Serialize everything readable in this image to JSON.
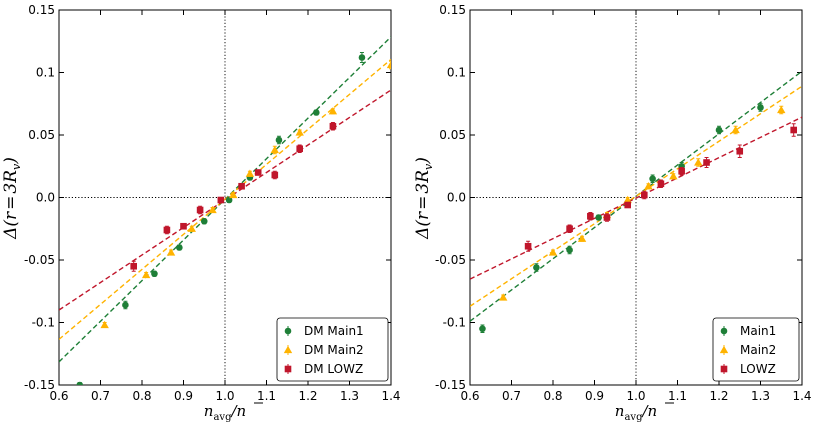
{
  "colors": {
    "green": "#1e7f37",
    "orange": "#ffb300",
    "red": "#c0162b"
  },
  "chart_data": [
    {
      "type": "scatter",
      "panel": "left",
      "xlabel": "n_avg / n̄",
      "ylabel": "Δ(r = 3R_v)",
      "xlim": [
        0.6,
        1.4
      ],
      "ylim": [
        -0.15,
        0.15
      ],
      "xticks": [
        "0.6",
        "0.7",
        "0.8",
        "0.9",
        "1.0",
        "1.1",
        "1.2",
        "1.3",
        "1.4"
      ],
      "yticks": [
        "-0.15",
        "-0.1",
        "-0.05",
        "0.0",
        "0.05",
        "0.1",
        "0.15"
      ],
      "reference_lines": {
        "x": 1.0,
        "y": 0.0
      },
      "legend_position": "bottom-right",
      "series": [
        {
          "name": "DM Main1",
          "color_key": "green",
          "marker": "circle",
          "fit": {
            "slope": 0.325,
            "intercept": -0.0015
          },
          "points": [
            {
              "x": 0.65,
              "y": -0.15,
              "err": 0.002
            },
            {
              "x": 0.76,
              "y": -0.086,
              "err": 0.003
            },
            {
              "x": 0.83,
              "y": -0.061,
              "err": 0.002
            },
            {
              "x": 0.89,
              "y": -0.04,
              "err": 0.002
            },
            {
              "x": 0.95,
              "y": -0.019,
              "err": 0.002
            },
            {
              "x": 1.01,
              "y": -0.002,
              "err": 0.002
            },
            {
              "x": 1.06,
              "y": 0.016,
              "err": 0.002
            },
            {
              "x": 1.13,
              "y": 0.046,
              "err": 0.003
            },
            {
              "x": 1.22,
              "y": 0.068,
              "err": 0.002
            },
            {
              "x": 1.33,
              "y": 0.112,
              "err": 0.004
            }
          ]
        },
        {
          "name": "DM Main2",
          "color_key": "orange",
          "marker": "triangle",
          "fit": {
            "slope": 0.28,
            "intercept": -0.0015
          },
          "points": [
            {
              "x": 0.71,
              "y": -0.102,
              "err": 0.002
            },
            {
              "x": 0.81,
              "y": -0.062,
              "err": 0.002
            },
            {
              "x": 0.87,
              "y": -0.044,
              "err": 0.002
            },
            {
              "x": 0.92,
              "y": -0.025,
              "err": 0.002
            },
            {
              "x": 0.97,
              "y": -0.01,
              "err": 0.002
            },
            {
              "x": 1.02,
              "y": 0.002,
              "err": 0.002
            },
            {
              "x": 1.06,
              "y": 0.019,
              "err": 0.002
            },
            {
              "x": 1.12,
              "y": 0.038,
              "err": 0.003
            },
            {
              "x": 1.18,
              "y": 0.052,
              "err": 0.002
            },
            {
              "x": 1.26,
              "y": 0.069,
              "err": 0.002
            },
            {
              "x": 1.4,
              "y": 0.106,
              "err": 0.003
            }
          ]
        },
        {
          "name": "DM LOWZ",
          "color_key": "red",
          "marker": "square",
          "fit": {
            "slope": 0.22,
            "intercept": -0.002
          },
          "points": [
            {
              "x": 0.78,
              "y": -0.055,
              "err": 0.004
            },
            {
              "x": 0.86,
              "y": -0.026,
              "err": 0.003
            },
            {
              "x": 0.9,
              "y": -0.023,
              "err": 0.002
            },
            {
              "x": 0.94,
              "y": -0.01,
              "err": 0.003
            },
            {
              "x": 0.99,
              "y": -0.002,
              "err": 0.002
            },
            {
              "x": 1.04,
              "y": 0.009,
              "err": 0.002
            },
            {
              "x": 1.08,
              "y": 0.02,
              "err": 0.002
            },
            {
              "x": 1.12,
              "y": 0.018,
              "err": 0.003
            },
            {
              "x": 1.18,
              "y": 0.039,
              "err": 0.003
            },
            {
              "x": 1.26,
              "y": 0.057,
              "err": 0.003
            }
          ]
        }
      ]
    },
    {
      "type": "scatter",
      "panel": "right",
      "xlabel": "n_avg / n̄",
      "ylabel": "Δ(r = 3R_v)",
      "xlim": [
        0.6,
        1.4
      ],
      "ylim": [
        -0.15,
        0.15
      ],
      "xticks": [
        "0.6",
        "0.7",
        "0.8",
        "0.9",
        "1.0",
        "1.1",
        "1.2",
        "1.3",
        "1.4"
      ],
      "yticks": [
        "-0.15",
        "-0.1",
        "-0.05",
        "0.0",
        "0.05",
        "0.1",
        "0.15"
      ],
      "reference_lines": {
        "x": 1.0,
        "y": 0.0
      },
      "legend_position": "bottom-right",
      "series": [
        {
          "name": "Main1",
          "color_key": "green",
          "marker": "circle",
          "fit": {
            "slope": 0.25,
            "intercept": 0.001
          },
          "points": [
            {
              "x": 0.63,
              "y": -0.105,
              "err": 0.003
            },
            {
              "x": 0.76,
              "y": -0.056,
              "err": 0.003
            },
            {
              "x": 0.84,
              "y": -0.042,
              "err": 0.003
            },
            {
              "x": 0.91,
              "y": -0.016,
              "err": 0.002
            },
            {
              "x": 0.98,
              "y": -0.004,
              "err": 0.002
            },
            {
              "x": 1.04,
              "y": 0.015,
              "err": 0.003
            },
            {
              "x": 1.11,
              "y": 0.025,
              "err": 0.003
            },
            {
              "x": 1.2,
              "y": 0.054,
              "err": 0.003
            },
            {
              "x": 1.3,
              "y": 0.072,
              "err": 0.003
            }
          ]
        },
        {
          "name": "Main2",
          "color_key": "orange",
          "marker": "triangle",
          "fit": {
            "slope": 0.22,
            "intercept": 0.001
          },
          "points": [
            {
              "x": 0.68,
              "y": -0.08,
              "err": 0.002
            },
            {
              "x": 0.8,
              "y": -0.044,
              "err": 0.002
            },
            {
              "x": 0.87,
              "y": -0.033,
              "err": 0.002
            },
            {
              "x": 0.93,
              "y": -0.014,
              "err": 0.002
            },
            {
              "x": 0.98,
              "y": -0.002,
              "err": 0.002
            },
            {
              "x": 1.03,
              "y": 0.009,
              "err": 0.002
            },
            {
              "x": 1.09,
              "y": 0.017,
              "err": 0.002
            },
            {
              "x": 1.15,
              "y": 0.028,
              "err": 0.003
            },
            {
              "x": 1.24,
              "y": 0.054,
              "err": 0.003
            },
            {
              "x": 1.35,
              "y": 0.07,
              "err": 0.003
            }
          ]
        },
        {
          "name": "LOWZ",
          "color_key": "red",
          "marker": "square",
          "fit": {
            "slope": 0.162,
            "intercept": -0.0005
          },
          "points": [
            {
              "x": 0.74,
              "y": -0.039,
              "err": 0.004
            },
            {
              "x": 0.84,
              "y": -0.025,
              "err": 0.003
            },
            {
              "x": 0.89,
              "y": -0.015,
              "err": 0.003
            },
            {
              "x": 0.93,
              "y": -0.016,
              "err": 0.003
            },
            {
              "x": 0.98,
              "y": -0.006,
              "err": 0.002
            },
            {
              "x": 1.02,
              "y": 0.002,
              "err": 0.003
            },
            {
              "x": 1.06,
              "y": 0.011,
              "err": 0.003
            },
            {
              "x": 1.11,
              "y": 0.021,
              "err": 0.003
            },
            {
              "x": 1.17,
              "y": 0.028,
              "err": 0.004
            },
            {
              "x": 1.25,
              "y": 0.037,
              "err": 0.005
            },
            {
              "x": 1.38,
              "y": 0.054,
              "err": 0.005
            }
          ]
        }
      ]
    }
  ]
}
